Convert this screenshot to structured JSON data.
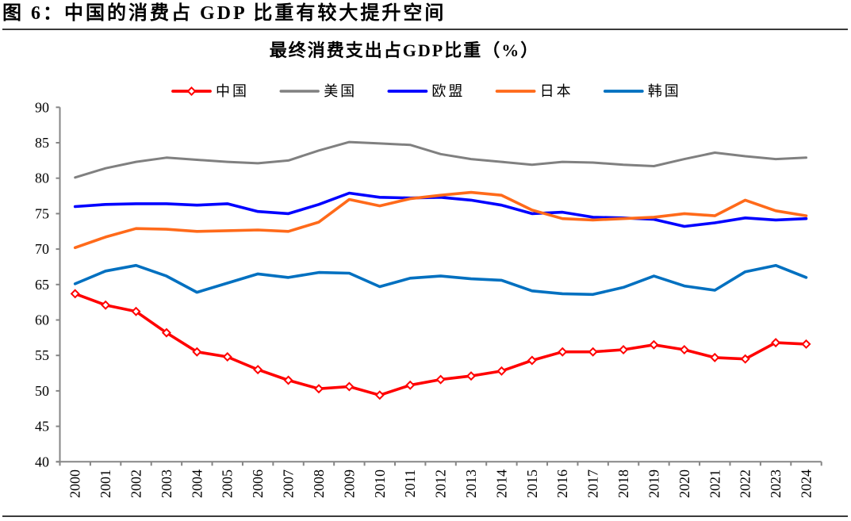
{
  "page": {
    "figure_caption": "图 6：中国的消费占 GDP 比重有较大提升空间"
  },
  "chart_data": {
    "type": "line",
    "title": "最终消费支出占GDP比重（%）",
    "xlabel": "",
    "ylabel": "",
    "categories": [
      "2000",
      "2001",
      "2002",
      "2003",
      "2004",
      "2005",
      "2006",
      "2007",
      "2008",
      "2009",
      "2010",
      "2011",
      "2012",
      "2013",
      "2014",
      "2015",
      "2016",
      "2017",
      "2018",
      "2019",
      "2020",
      "2021",
      "2022",
      "2023",
      "2024"
    ],
    "ylim": [
      40,
      90
    ],
    "yticks": [
      40,
      45,
      50,
      55,
      60,
      65,
      70,
      75,
      80,
      85,
      90
    ],
    "grid": false,
    "legend_position": "top",
    "series": [
      {
        "name": "中国",
        "color": "#FF0000",
        "marker": "diamond",
        "values": [
          63.7,
          62.1,
          61.2,
          58.2,
          55.5,
          54.8,
          53.0,
          51.5,
          50.3,
          50.6,
          49.4,
          50.8,
          51.6,
          52.1,
          52.8,
          54.3,
          55.5,
          55.5,
          55.8,
          56.5,
          55.8,
          54.7,
          54.5,
          56.8,
          56.6
        ]
      },
      {
        "name": "美国",
        "color": "#808080",
        "marker": "none",
        "values": [
          80.1,
          81.4,
          82.3,
          82.9,
          82.6,
          82.3,
          82.1,
          82.5,
          83.9,
          85.1,
          84.9,
          84.7,
          83.4,
          82.7,
          82.3,
          81.9,
          82.3,
          82.2,
          81.9,
          81.7,
          82.7,
          83.6,
          83.1,
          82.7,
          82.9
        ]
      },
      {
        "name": "欧盟",
        "color": "#0000FF",
        "marker": "none",
        "values": [
          76.0,
          76.3,
          76.4,
          76.4,
          76.2,
          76.4,
          75.3,
          75.0,
          76.3,
          77.9,
          77.3,
          77.2,
          77.3,
          76.9,
          76.2,
          75.0,
          75.2,
          74.5,
          74.4,
          74.2,
          73.2,
          73.7,
          74.4,
          74.1,
          74.3
        ]
      },
      {
        "name": "日本",
        "color": "#FF6A1A",
        "marker": "none",
        "values": [
          70.2,
          71.7,
          72.9,
          72.8,
          72.5,
          72.6,
          72.7,
          72.5,
          73.8,
          77.0,
          76.1,
          77.1,
          77.6,
          78.0,
          77.6,
          75.5,
          74.3,
          74.1,
          74.3,
          74.5,
          75.0,
          74.7,
          76.9,
          75.4,
          74.7
        ]
      },
      {
        "name": "韩国",
        "color": "#0070C0",
        "marker": "none",
        "values": [
          65.1,
          66.9,
          67.7,
          66.2,
          63.9,
          65.2,
          66.5,
          66.0,
          66.7,
          66.6,
          64.7,
          65.9,
          66.2,
          65.8,
          65.6,
          64.1,
          63.7,
          63.6,
          64.6,
          66.2,
          64.8,
          64.2,
          66.8,
          67.7,
          66.0
        ]
      }
    ]
  }
}
